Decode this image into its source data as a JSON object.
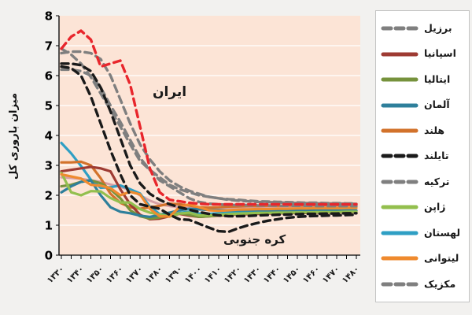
{
  "figure": {
    "background_color": "#f2f1ef",
    "plot_background_color": "#fce4d6",
    "gridline_color": "#ffffff",
    "axis_color": "#000000"
  },
  "chart_data": {
    "type": "line",
    "title": "",
    "xlabel": "",
    "ylabel": "میزان باروری کل",
    "ylim": [
      0,
      8
    ],
    "y_ticks": [
      "0",
      "1",
      "2",
      "3",
      "4",
      "5",
      "6",
      "7",
      "8"
    ],
    "x_years": [
      1330,
      1335,
      1340,
      1345,
      1350,
      1355,
      1360,
      1365,
      1370,
      1375,
      1380,
      1385,
      1390,
      1395,
      1400,
      1405,
      1410,
      1415,
      1420,
      1425,
      1430,
      1435,
      1440,
      1445,
      1450,
      1455,
      1460,
      1465,
      1470,
      1475,
      1480
    ],
    "x_tick_labels": [
      "۱۳۳۰",
      "۱۳۴۰",
      "۱۳۵۰",
      "۱۳۶۰",
      "۱۳۷۰",
      "۱۳۸۰",
      "۱۳۹۰",
      "۱۴۰۰",
      "۱۴۱۰",
      "۱۴۲۰",
      "۱۴۳۰",
      "۱۴۴۰",
      "۱۴۵۰",
      "۱۴۶۰",
      "۱۴۷۰",
      "۱۴۸۰"
    ],
    "x_label_years": [
      1330,
      1340,
      1350,
      1360,
      1370,
      1380,
      1390,
      1400,
      1410,
      1420,
      1430,
      1440,
      1450,
      1460,
      1470,
      1480
    ],
    "grid": "horizontal",
    "legend_position": "right",
    "annotations": {
      "iran": "ایران",
      "south_korea": "کره جنوبی"
    },
    "series": [
      {
        "name": "",
        "color": "#d79fa5",
        "dash": false,
        "width": 3,
        "in_legend": false,
        "values": [
          2.6,
          2.58,
          2.55,
          2.5,
          2.45,
          2.36,
          2.28,
          2.18,
          2.0,
          1.82,
          1.7,
          1.64,
          1.6,
          1.58,
          1.57,
          1.57,
          1.58,
          1.59,
          1.6,
          1.61,
          1.61,
          1.62,
          1.62,
          1.63,
          1.63,
          1.63,
          1.64,
          1.64,
          1.64,
          1.65,
          1.65
        ]
      },
      {
        "name": "لهستان",
        "color": "#2f9fc4",
        "dash": false,
        "width": 3.2,
        "in_legend": true,
        "values": [
          3.75,
          3.4,
          2.98,
          2.52,
          2.25,
          2.27,
          2.33,
          2.2,
          2.06,
          1.62,
          1.37,
          1.32,
          1.41,
          1.45,
          1.39,
          1.38,
          1.4,
          1.42,
          1.43,
          1.44,
          1.45,
          1.45,
          1.46,
          1.46,
          1.47,
          1.47,
          1.48,
          1.48,
          1.48,
          1.49,
          1.49
        ]
      },
      {
        "name": "هلند",
        "color": "#d2722b",
        "dash": false,
        "width": 3.2,
        "in_legend": true,
        "values": [
          3.1,
          3.1,
          3.12,
          3.0,
          2.57,
          2.05,
          1.75,
          1.6,
          1.55,
          1.6,
          1.65,
          1.72,
          1.7,
          1.66,
          1.6,
          1.59,
          1.6,
          1.62,
          1.63,
          1.64,
          1.64,
          1.65,
          1.65,
          1.66,
          1.66,
          1.66,
          1.67,
          1.67,
          1.67,
          1.68,
          1.68
        ]
      },
      {
        "name": "اسپانیا",
        "color": "#9e3b33",
        "dash": false,
        "width": 3.2,
        "in_legend": true,
        "values": [
          2.8,
          2.85,
          2.9,
          2.95,
          2.9,
          2.8,
          2.2,
          1.7,
          1.35,
          1.2,
          1.22,
          1.3,
          1.38,
          1.32,
          1.28,
          1.3,
          1.32,
          1.34,
          1.36,
          1.37,
          1.38,
          1.39,
          1.4,
          1.4,
          1.41,
          1.41,
          1.42,
          1.42,
          1.43,
          1.43,
          1.44
        ]
      },
      {
        "name": "ایتالیا",
        "color": "#76923c",
        "dash": false,
        "width": 3.2,
        "in_legend": true,
        "values": [
          2.3,
          2.35,
          2.45,
          2.5,
          2.4,
          2.2,
          1.9,
          1.5,
          1.3,
          1.22,
          1.26,
          1.33,
          1.4,
          1.35,
          1.28,
          1.3,
          1.33,
          1.35,
          1.37,
          1.39,
          1.4,
          1.41,
          1.41,
          1.42,
          1.42,
          1.43,
          1.43,
          1.44,
          1.44,
          1.45,
          1.45
        ]
      },
      {
        "name": "آلمان",
        "color": "#2e7f9b",
        "dash": false,
        "width": 3.2,
        "in_legend": true,
        "values": [
          2.1,
          2.3,
          2.45,
          2.5,
          2.0,
          1.6,
          1.45,
          1.4,
          1.32,
          1.28,
          1.35,
          1.42,
          1.5,
          1.55,
          1.53,
          1.51,
          1.5,
          1.5,
          1.5,
          1.5,
          1.5,
          1.5,
          1.5,
          1.5,
          1.5,
          1.49,
          1.49,
          1.49,
          1.49,
          1.49,
          1.49
        ]
      },
      {
        "name": "ژاپن",
        "color": "#93bf4e",
        "dash": false,
        "width": 3.2,
        "in_legend": true,
        "values": [
          2.75,
          2.1,
          2.0,
          2.14,
          2.13,
          1.91,
          1.76,
          1.76,
          1.54,
          1.42,
          1.36,
          1.29,
          1.39,
          1.42,
          1.33,
          1.33,
          1.35,
          1.37,
          1.39,
          1.4,
          1.41,
          1.41,
          1.42,
          1.42,
          1.43,
          1.43,
          1.44,
          1.44,
          1.44,
          1.45,
          1.45
        ]
      },
      {
        "name": "لیتوانی",
        "color": "#ef8a2e",
        "dash": false,
        "width": 3.2,
        "in_legend": true,
        "values": [
          2.7,
          2.63,
          2.56,
          2.35,
          2.32,
          2.24,
          2.0,
          2.12,
          2.03,
          1.55,
          1.3,
          1.29,
          1.6,
          1.7,
          1.6,
          1.5,
          1.48,
          1.5,
          1.52,
          1.53,
          1.54,
          1.54,
          1.55,
          1.55,
          1.56,
          1.56,
          1.57,
          1.57,
          1.57,
          1.58,
          1.58
        ]
      },
      {
        "name": "برزیل",
        "color": "#7f7f7f",
        "dash": true,
        "width": 3.4,
        "in_legend": true,
        "values": [
          6.2,
          6.2,
          6.15,
          6.0,
          5.6,
          5.0,
          4.45,
          3.85,
          3.25,
          2.85,
          2.5,
          2.3,
          2.1,
          1.9,
          1.78,
          1.72,
          1.7,
          1.68,
          1.67,
          1.67,
          1.66,
          1.66,
          1.65,
          1.65,
          1.65,
          1.65,
          1.64,
          1.64,
          1.64,
          1.64,
          1.64
        ]
      },
      {
        "name": "مکزیک",
        "color": "#7f7f7f",
        "dash": true,
        "width": 3.4,
        "in_legend": true,
        "values": [
          6.75,
          6.8,
          6.8,
          6.75,
          6.55,
          6.0,
          5.2,
          4.4,
          3.7,
          3.2,
          2.8,
          2.5,
          2.3,
          2.15,
          2.05,
          1.95,
          1.9,
          1.85,
          1.82,
          1.8,
          1.78,
          1.77,
          1.76,
          1.75,
          1.74,
          1.74,
          1.73,
          1.73,
          1.72,
          1.72,
          1.71
        ]
      },
      {
        "name": "ترکیه",
        "color": "#7f7f7f",
        "dash": true,
        "width": 3.4,
        "in_legend": true,
        "values": [
          6.9,
          6.7,
          6.4,
          5.95,
          5.4,
          4.85,
          4.3,
          3.7,
          3.15,
          2.85,
          2.6,
          2.35,
          2.2,
          2.1,
          2.0,
          1.95,
          1.9,
          1.87,
          1.85,
          1.82,
          1.8,
          1.79,
          1.78,
          1.77,
          1.76,
          1.75,
          1.75,
          1.74,
          1.74,
          1.73,
          1.73
        ]
      },
      {
        "name": "تایلند",
        "color": "#1a1a1a",
        "dash": true,
        "width": 3.4,
        "in_legend": true,
        "values": [
          6.4,
          6.4,
          6.35,
          6.15,
          5.6,
          4.8,
          3.9,
          3.0,
          2.4,
          2.05,
          1.85,
          1.7,
          1.6,
          1.52,
          1.44,
          1.38,
          1.33,
          1.3,
          1.3,
          1.31,
          1.33,
          1.34,
          1.35,
          1.36,
          1.37,
          1.38,
          1.38,
          1.39,
          1.39,
          1.4,
          1.4
        ]
      },
      {
        "name": "کره جنوبی",
        "color": "#1a1a1a",
        "dash": true,
        "width": 3.4,
        "in_legend": false,
        "values": [
          6.3,
          6.25,
          6.0,
          5.3,
          4.4,
          3.5,
          2.7,
          2.0,
          1.7,
          1.62,
          1.55,
          1.35,
          1.2,
          1.18,
          1.05,
          0.92,
          0.8,
          0.78,
          0.9,
          1.0,
          1.08,
          1.15,
          1.2,
          1.25,
          1.28,
          1.3,
          1.31,
          1.32,
          1.33,
          1.34,
          1.35
        ]
      },
      {
        "name": "ایران",
        "color": "#e8262c",
        "dash": true,
        "width": 3.4,
        "in_legend": false,
        "values": [
          6.9,
          7.3,
          7.5,
          7.2,
          6.3,
          6.4,
          6.5,
          5.7,
          4.3,
          2.9,
          2.1,
          1.85,
          1.8,
          1.75,
          1.72,
          1.7,
          1.7,
          1.7,
          1.7,
          1.7,
          1.7,
          1.7,
          1.7,
          1.7,
          1.7,
          1.7,
          1.7,
          1.7,
          1.7,
          1.7,
          1.7
        ]
      }
    ],
    "legend_order": [
      "برزیل",
      "اسپانیا",
      "ایتالیا",
      "آلمان",
      "هلند",
      "تایلند",
      "ترکیه",
      "ژاپن",
      "لهستان",
      "لیتوانی",
      "مکزیک"
    ]
  }
}
